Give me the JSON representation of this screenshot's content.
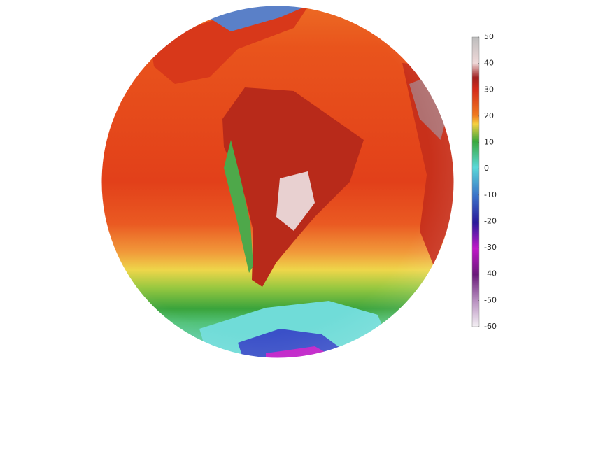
{
  "colorbar": {
    "lim": [
      -60,
      50
    ],
    "ticks": [
      50,
      40,
      30,
      20,
      10,
      0,
      -10,
      -20,
      -30,
      -40,
      -50,
      -60
    ]
  }
}
